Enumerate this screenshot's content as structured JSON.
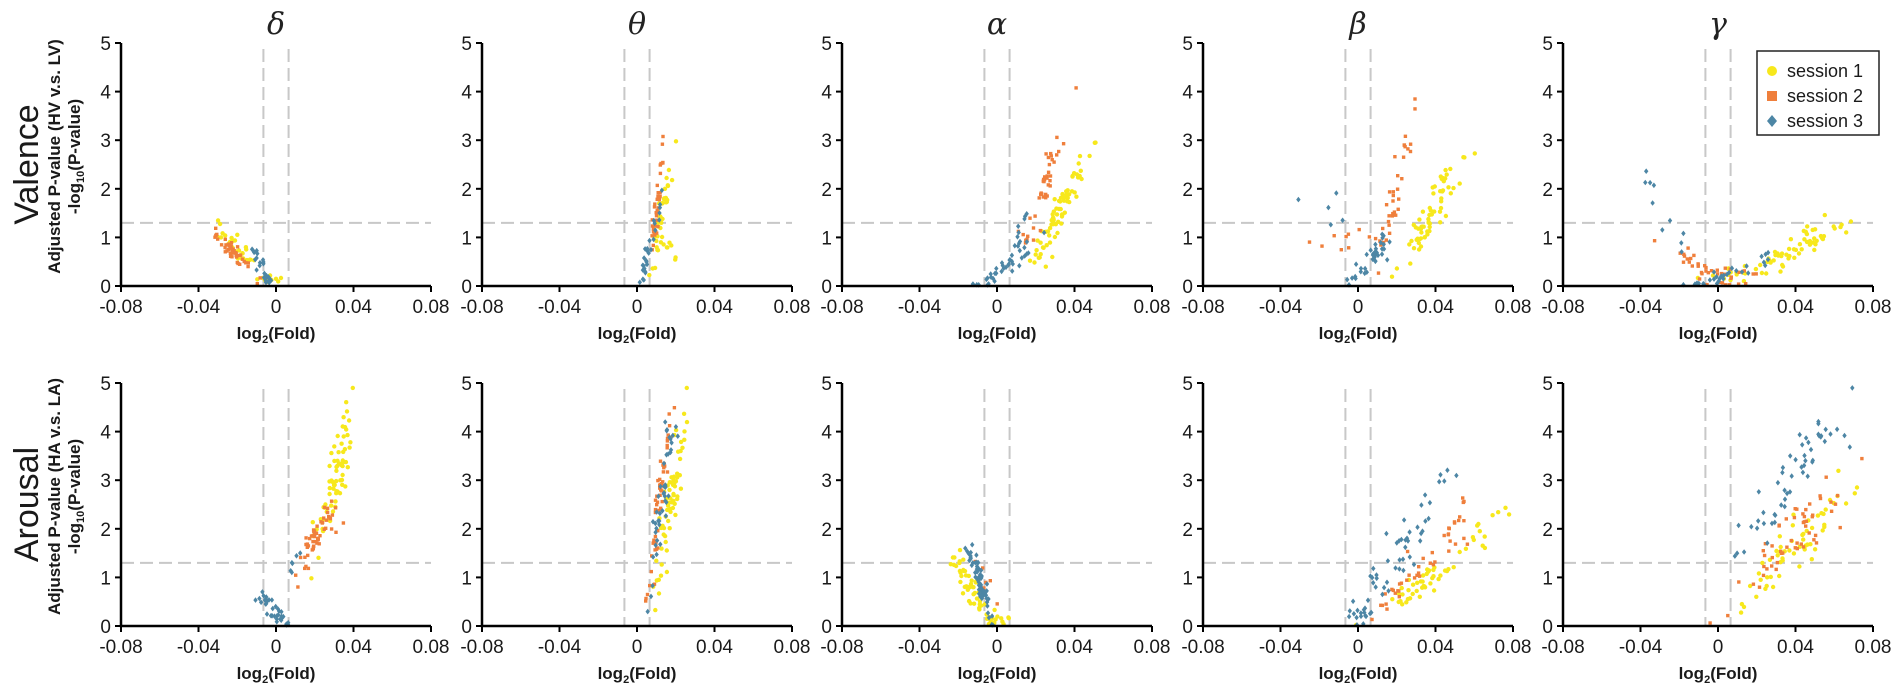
{
  "chart_data": {
    "type": "scatter",
    "figure_kind": "volcano plots",
    "bands": [
      "δ",
      "θ",
      "α",
      "β",
      "γ"
    ],
    "rows": [
      {
        "key": "valence",
        "title": "Valence",
        "ylabel_line1": "Adjusted P-value (HV v.s. LV)",
        "ylabel_line2_prefix": "-log",
        "ylabel_line2_sub": "10",
        "ylabel_line2_suffix": "(P-value)"
      },
      {
        "key": "arousal",
        "title": "Arousal",
        "ylabel_line1": "Adjusted P-value (HA v.s. LA)",
        "ylabel_line2_prefix": "-log",
        "ylabel_line2_sub": "10",
        "ylabel_line2_suffix": "(P-value)"
      }
    ],
    "xlabel_prefix": "log",
    "xlabel_sub": "2",
    "xlabel_suffix": "(Fold)",
    "xlim": [
      -0.08,
      0.08
    ],
    "ylim": [
      0,
      5
    ],
    "xticks": [
      -0.08,
      -0.04,
      0,
      0.04,
      0.08
    ],
    "xtick_labels": [
      "-0.08",
      "-0.04",
      "0",
      "0.04",
      "0.08"
    ],
    "yticks": [
      0,
      1,
      2,
      3,
      4,
      5
    ],
    "ytick_labels": [
      "0",
      "1",
      "2",
      "3",
      "4",
      "5"
    ],
    "threshold_fold": [
      -0.0065,
      0.0065
    ],
    "threshold_p": 1.3,
    "series": [
      {
        "name": "session 1",
        "color": "#f7e81c",
        "marker": "circle"
      },
      {
        "name": "session 2",
        "color": "#ef7f3c",
        "marker": "square"
      },
      {
        "name": "session 3",
        "color": "#4d86a5",
        "marker": "diamond"
      }
    ],
    "legend_position": "top-right of the gamma valence panel",
    "clusters": [
      [
        [
          [
            -0.02,
            0.75,
            0.006,
            0.25,
            30,
            -50
          ],
          [
            -0.003,
            0.12,
            0.003,
            0.08,
            10,
            0
          ]
        ],
        [
          [
            -0.022,
            0.7,
            0.005,
            0.2,
            45,
            -45
          ]
        ],
        [
          [
            -0.008,
            0.45,
            0.003,
            0.22,
            18,
            -70
          ],
          [
            -0.003,
            0.15,
            0.002,
            0.08,
            8,
            0
          ]
        ]
      ],
      [
        [
          [
            0.013,
            1.6,
            0.0025,
            0.6,
            35,
            75
          ],
          [
            0.015,
            0.8,
            0.002,
            0.3,
            10,
            0
          ]
        ],
        [
          [
            0.011,
            1.9,
            0.002,
            0.7,
            35,
            78
          ]
        ],
        [
          [
            0.005,
            0.6,
            0.002,
            0.4,
            20,
            70
          ],
          [
            0.01,
            1.3,
            0.0015,
            0.3,
            8,
            70
          ]
        ]
      ],
      [
        [
          [
            0.03,
            1.4,
            0.006,
            0.5,
            60,
            45
          ],
          [
            0.04,
            2.1,
            0.005,
            0.3,
            12,
            25
          ]
        ],
        [
          [
            0.027,
            2.3,
            0.004,
            0.5,
            35,
            55
          ],
          [
            0.015,
            1.0,
            0.002,
            0.3,
            8,
            0
          ]
        ],
        [
          [
            0.003,
            0.35,
            0.008,
            0.3,
            35,
            35
          ],
          [
            0.01,
            0.9,
            0.003,
            0.3,
            12,
            50
          ]
        ]
      ],
      [
        [
          [
            0.038,
            1.4,
            0.008,
            0.5,
            50,
            40
          ],
          [
            0.045,
            2.2,
            0.005,
            0.3,
            15,
            20
          ]
        ],
        [
          [
            0.02,
            2.0,
            0.005,
            0.8,
            35,
            70
          ],
          [
            -0.005,
            0.9,
            0.01,
            0.4,
            10,
            0
          ]
        ],
        [
          [
            0.007,
            0.5,
            0.006,
            0.3,
            25,
            40
          ],
          [
            -0.015,
            1.4,
            0.006,
            0.6,
            5,
            0
          ],
          [
            0.012,
            0.9,
            0.004,
            0.3,
            12,
            30
          ]
        ]
      ],
      [
        [
          [
            0.045,
            0.9,
            0.012,
            0.3,
            50,
            20
          ],
          [
            0.015,
            0.3,
            0.01,
            0.2,
            20,
            10
          ]
        ],
        [
          [
            -0.01,
            0.35,
            0.01,
            0.3,
            30,
            -20
          ],
          [
            0.01,
            0.3,
            0.008,
            0.2,
            12,
            0
          ]
        ],
        [
          [
            -0.03,
            1.5,
            0.008,
            0.6,
            10,
            -60
          ],
          [
            0.005,
            0.25,
            0.01,
            0.2,
            30,
            20
          ]
        ]
      ],
      [
        [
          [
            0.03,
            2.9,
            0.006,
            0.9,
            70,
            65
          ]
        ],
        [
          [
            0.02,
            1.75,
            0.004,
            0.35,
            45,
            55
          ],
          [
            0.028,
            2.2,
            0.003,
            0.3,
            10,
            0
          ]
        ],
        [
          [
            0.0,
            0.25,
            0.004,
            0.25,
            30,
            -20
          ],
          [
            -0.007,
            0.55,
            0.002,
            0.15,
            6,
            0
          ],
          [
            0.009,
            1.3,
            0.002,
            0.2,
            6,
            80
          ]
        ]
      ],
      [
        [
          [
            0.017,
            2.5,
            0.004,
            0.9,
            70,
            70
          ]
        ],
        [
          [
            0.012,
            2.7,
            0.003,
            0.8,
            50,
            75
          ],
          [
            0.005,
            0.6,
            0.002,
            0.1,
            3,
            0
          ]
        ],
        [
          [
            0.012,
            2.4,
            0.003,
            0.9,
            40,
            78
          ],
          [
            0.018,
            3.8,
            0.002,
            0.3,
            5,
            0
          ]
        ]
      ],
      [
        [
          [
            -0.012,
            0.7,
            0.007,
            0.45,
            55,
            -35
          ],
          [
            0.0,
            0.15,
            0.004,
            0.1,
            10,
            0
          ]
        ],
        [
          [
            -0.008,
            1.1,
            0.004,
            0.3,
            8,
            -60
          ]
        ],
        [
          [
            -0.008,
            0.8,
            0.003,
            0.4,
            55,
            -75
          ],
          [
            -0.014,
            1.5,
            0.002,
            0.3,
            8,
            -60
          ]
        ]
      ],
      [
        [
          [
            0.035,
            0.9,
            0.012,
            0.4,
            45,
            25
          ],
          [
            0.06,
            1.8,
            0.008,
            0.4,
            10,
            20
          ]
        ],
        [
          [
            0.03,
            1.1,
            0.012,
            0.5,
            35,
            35
          ],
          [
            0.055,
            2.3,
            0.008,
            0.5,
            10,
            20
          ]
        ],
        [
          [
            0.015,
            1.1,
            0.01,
            0.6,
            35,
            55
          ],
          [
            0.03,
            2.3,
            0.008,
            0.4,
            12,
            30
          ],
          [
            0.003,
            0.3,
            0.004,
            0.2,
            15,
            0
          ]
        ]
      ],
      [
        [
          [
            0.045,
            1.9,
            0.015,
            0.6,
            45,
            30
          ],
          [
            0.02,
            0.8,
            0.008,
            0.4,
            12,
            40
          ]
        ],
        [
          [
            0.04,
            1.9,
            0.015,
            0.6,
            55,
            25
          ]
        ],
        [
          [
            0.035,
            2.9,
            0.015,
            0.8,
            45,
            30
          ],
          [
            0.06,
            4.0,
            0.01,
            0.3,
            8,
            10
          ]
        ]
      ]
    ]
  }
}
